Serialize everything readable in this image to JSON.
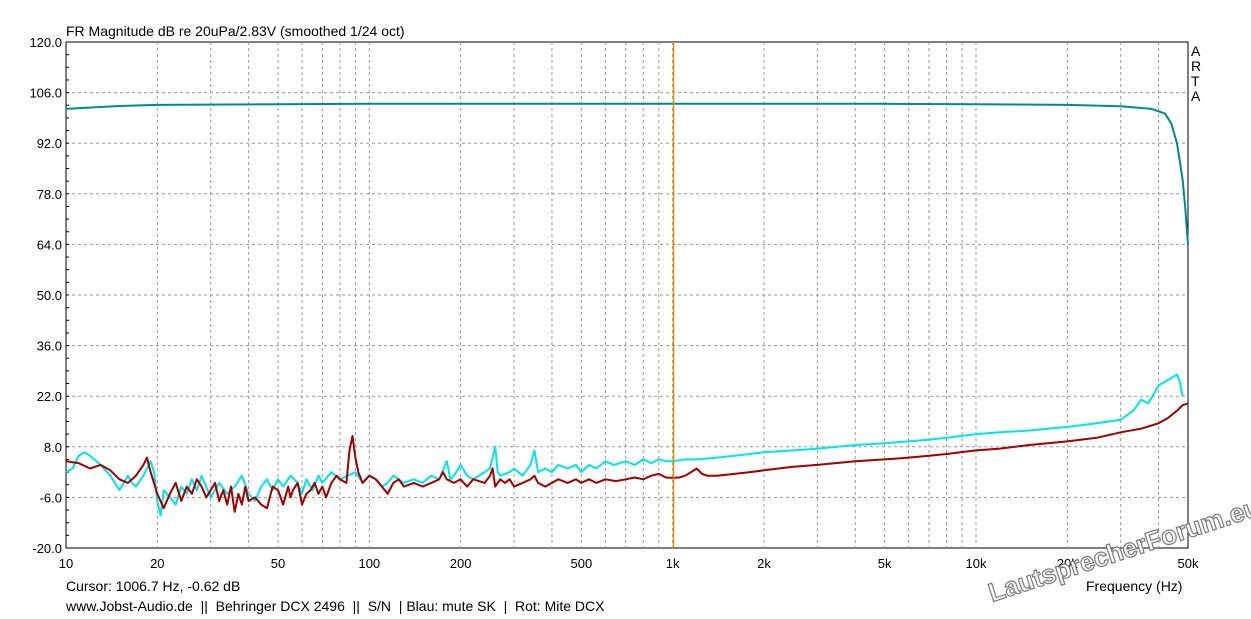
{
  "chart_data": {
    "type": "line",
    "title": "FR Magnitude dB re 20uPa/2.83V (smoothed 1/24 oct)",
    "xlabel": "Frequency (Hz)",
    "ylabel": "",
    "x_scale": "log",
    "xlim": [
      10,
      50000
    ],
    "ylim": [
      -20,
      120
    ],
    "grid": true,
    "y_ticks": [
      "120.0",
      "106.0",
      "92.0",
      "78.0",
      "64.0",
      "50.0",
      "36.0",
      "22.0",
      "8.0",
      "-6.0",
      "-20.0"
    ],
    "x_ticks": [
      {
        "v": 10,
        "label": "10"
      },
      {
        "v": 20,
        "label": "20"
      },
      {
        "v": 50,
        "label": "50"
      },
      {
        "v": 100,
        "label": "100"
      },
      {
        "v": 200,
        "label": "200"
      },
      {
        "v": 500,
        "label": "500"
      },
      {
        "v": 1000,
        "label": "1k"
      },
      {
        "v": 2000,
        "label": "2k"
      },
      {
        "v": 5000,
        "label": "5k"
      },
      {
        "v": 10000,
        "label": "10k"
      },
      {
        "v": 20000,
        "label": "20k"
      },
      {
        "v": 50000,
        "label": "50k"
      }
    ],
    "cursor": {
      "freq": 1006.7,
      "color": "#e08a00"
    },
    "series": [
      {
        "color": "#008b8b",
        "points": [
          [
            10,
            101.5
          ],
          [
            15,
            102.3
          ],
          [
            20,
            102.6
          ],
          [
            50,
            102.8
          ],
          [
            100,
            102.9
          ],
          [
            500,
            102.9
          ],
          [
            1000,
            102.9
          ],
          [
            5000,
            102.9
          ],
          [
            10000,
            102.8
          ],
          [
            20000,
            102.6
          ],
          [
            30000,
            102.2
          ],
          [
            38000,
            101.5
          ],
          [
            42000,
            100.2
          ],
          [
            44000,
            97.5
          ],
          [
            46000,
            92
          ],
          [
            48000,
            82
          ],
          [
            49000,
            74
          ],
          [
            50000,
            64
          ]
        ]
      },
      {
        "color": "#00e5e5",
        "points": [
          [
            10,
            1
          ],
          [
            10.5,
            2
          ],
          [
            11,
            5.5
          ],
          [
            11.5,
            6.5
          ],
          [
            12,
            5.5
          ],
          [
            13,
            3
          ],
          [
            14,
            0
          ],
          [
            14.5,
            -2
          ],
          [
            15,
            -4
          ],
          [
            15.5,
            -2
          ],
          [
            16,
            0
          ],
          [
            16.5,
            -2
          ],
          [
            17,
            -3
          ],
          [
            18,
            0
          ],
          [
            19,
            4
          ],
          [
            19.5,
            1
          ],
          [
            20,
            -7
          ],
          [
            20.5,
            -11
          ],
          [
            21,
            -4
          ],
          [
            22,
            -6
          ],
          [
            23,
            -8
          ],
          [
            24,
            -3
          ],
          [
            25,
            -5
          ],
          [
            26,
            -1
          ],
          [
            27,
            -4
          ],
          [
            28,
            0
          ],
          [
            30,
            -6
          ],
          [
            32,
            -2
          ],
          [
            34,
            -5
          ],
          [
            36,
            -3
          ],
          [
            38,
            0
          ],
          [
            40,
            -5
          ],
          [
            42,
            -7
          ],
          [
            44,
            -3
          ],
          [
            46,
            -1
          ],
          [
            48,
            -4
          ],
          [
            50,
            -1
          ],
          [
            52,
            -3
          ],
          [
            55,
            0
          ],
          [
            58,
            -2
          ],
          [
            60,
            -5
          ],
          [
            62,
            -1
          ],
          [
            65,
            -4
          ],
          [
            68,
            0
          ],
          [
            70,
            -2
          ],
          [
            75,
            1
          ],
          [
            80,
            -1
          ],
          [
            85,
            0
          ],
          [
            90,
            1
          ],
          [
            95,
            -2
          ],
          [
            100,
            0
          ],
          [
            105,
            -1
          ],
          [
            110,
            -3
          ],
          [
            115,
            -2
          ],
          [
            120,
            0
          ],
          [
            125,
            -1
          ],
          [
            130,
            -2
          ],
          [
            140,
            -1
          ],
          [
            150,
            -2
          ],
          [
            160,
            0
          ],
          [
            170,
            -1
          ],
          [
            180,
            4
          ],
          [
            185,
            -1
          ],
          [
            190,
            0
          ],
          [
            200,
            3
          ],
          [
            210,
            0
          ],
          [
            220,
            -1
          ],
          [
            240,
            1
          ],
          [
            250,
            2
          ],
          [
            260,
            8
          ],
          [
            265,
            1
          ],
          [
            270,
            0
          ],
          [
            290,
            1
          ],
          [
            300,
            2
          ],
          [
            320,
            0
          ],
          [
            340,
            3
          ],
          [
            350,
            7
          ],
          [
            360,
            1
          ],
          [
            380,
            2
          ],
          [
            400,
            1
          ],
          [
            420,
            3
          ],
          [
            450,
            2
          ],
          [
            480,
            3
          ],
          [
            500,
            1
          ],
          [
            530,
            3
          ],
          [
            560,
            2
          ],
          [
            600,
            4
          ],
          [
            640,
            3
          ],
          [
            700,
            4
          ],
          [
            750,
            3
          ],
          [
            800,
            4.5
          ],
          [
            850,
            3.5
          ],
          [
            900,
            4.5
          ],
          [
            950,
            4
          ],
          [
            1000,
            4
          ],
          [
            1100,
            4.5
          ],
          [
            1200,
            4.5
          ],
          [
            1400,
            5
          ],
          [
            1600,
            5.5
          ],
          [
            1800,
            6
          ],
          [
            2000,
            6.5
          ],
          [
            2500,
            7
          ],
          [
            3000,
            7.5
          ],
          [
            4000,
            8.5
          ],
          [
            5000,
            9
          ],
          [
            6000,
            9.5
          ],
          [
            7000,
            10
          ],
          [
            8000,
            10.5
          ],
          [
            10000,
            11.5
          ],
          [
            12000,
            12
          ],
          [
            15000,
            12.5
          ],
          [
            20000,
            13.5
          ],
          [
            25000,
            14.5
          ],
          [
            30000,
            15.5
          ],
          [
            33000,
            18
          ],
          [
            35000,
            21
          ],
          [
            37000,
            20
          ],
          [
            40000,
            25
          ],
          [
            42000,
            26
          ],
          [
            44000,
            27
          ],
          [
            46000,
            28
          ],
          [
            47000,
            26
          ],
          [
            48000,
            22
          ]
        ]
      },
      {
        "color": "#a00000",
        "points": [
          [
            10,
            4
          ],
          [
            11,
            3.5
          ],
          [
            12,
            2
          ],
          [
            13,
            3
          ],
          [
            14,
            1.5
          ],
          [
            15,
            -1
          ],
          [
            16,
            -2
          ],
          [
            17,
            0
          ],
          [
            18,
            3
          ],
          [
            18.5,
            5
          ],
          [
            19,
            1
          ],
          [
            20,
            -5
          ],
          [
            21,
            -9
          ],
          [
            22,
            -5
          ],
          [
            23,
            -2
          ],
          [
            24,
            -7
          ],
          [
            25,
            -3
          ],
          [
            26,
            -5
          ],
          [
            27,
            -1
          ],
          [
            28,
            -3
          ],
          [
            29,
            -6
          ],
          [
            30,
            -4
          ],
          [
            31,
            -2
          ],
          [
            32,
            -7
          ],
          [
            33,
            -4
          ],
          [
            34,
            -8
          ],
          [
            35,
            -3
          ],
          [
            36,
            -10
          ],
          [
            37,
            -5
          ],
          [
            38,
            -8
          ],
          [
            39,
            -3
          ],
          [
            40,
            -7
          ],
          [
            42,
            -6
          ],
          [
            44,
            -8
          ],
          [
            46,
            -9
          ],
          [
            48,
            -3
          ],
          [
            50,
            -4
          ],
          [
            52,
            -8
          ],
          [
            54,
            -3
          ],
          [
            55,
            -6
          ],
          [
            56,
            -4
          ],
          [
            58,
            -2
          ],
          [
            60,
            -8
          ],
          [
            62,
            -5
          ],
          [
            64,
            -4
          ],
          [
            66,
            -2
          ],
          [
            68,
            -5
          ],
          [
            70,
            -3
          ],
          [
            72,
            -6
          ],
          [
            75,
            -2
          ],
          [
            78,
            0
          ],
          [
            80,
            -1
          ],
          [
            84,
            -2
          ],
          [
            86,
            7
          ],
          [
            88,
            11
          ],
          [
            90,
            5
          ],
          [
            92,
            1
          ],
          [
            95,
            -2
          ],
          [
            100,
            0
          ],
          [
            105,
            -1
          ],
          [
            110,
            -3
          ],
          [
            115,
            -5
          ],
          [
            120,
            -2
          ],
          [
            125,
            -1
          ],
          [
            130,
            -3
          ],
          [
            140,
            -2
          ],
          [
            150,
            -3
          ],
          [
            160,
            -2
          ],
          [
            170,
            -1
          ],
          [
            175,
            1
          ],
          [
            180,
            -1
          ],
          [
            190,
            -2
          ],
          [
            200,
            -1
          ],
          [
            210,
            -3
          ],
          [
            220,
            -1
          ],
          [
            240,
            -2
          ],
          [
            250,
            0
          ],
          [
            255,
            2
          ],
          [
            260,
            -3
          ],
          [
            270,
            -1
          ],
          [
            280,
            -2
          ],
          [
            290,
            -1
          ],
          [
            300,
            -3
          ],
          [
            320,
            -2
          ],
          [
            340,
            -1
          ],
          [
            350,
            0
          ],
          [
            360,
            -2
          ],
          [
            380,
            -3
          ],
          [
            400,
            -2
          ],
          [
            420,
            -1
          ],
          [
            450,
            -2
          ],
          [
            480,
            -1
          ],
          [
            500,
            -2
          ],
          [
            530,
            -1
          ],
          [
            560,
            -2
          ],
          [
            600,
            -1
          ],
          [
            650,
            -1.5
          ],
          [
            700,
            -1
          ],
          [
            750,
            -0.5
          ],
          [
            800,
            -1
          ],
          [
            850,
            0
          ],
          [
            900,
            0.5
          ],
          [
            950,
            -0.5
          ],
          [
            1000,
            -0.6
          ],
          [
            1050,
            -0.5
          ],
          [
            1100,
            0
          ],
          [
            1150,
            1
          ],
          [
            1200,
            2
          ],
          [
            1250,
            0.5
          ],
          [
            1300,
            0
          ],
          [
            1400,
            0
          ],
          [
            1600,
            0.5
          ],
          [
            1800,
            1
          ],
          [
            2000,
            1.5
          ],
          [
            2500,
            2.5
          ],
          [
            3000,
            3
          ],
          [
            4000,
            4
          ],
          [
            5000,
            4.5
          ],
          [
            6000,
            5
          ],
          [
            7000,
            5.5
          ],
          [
            8000,
            6
          ],
          [
            10000,
            7
          ],
          [
            12000,
            7.5
          ],
          [
            15000,
            8.5
          ],
          [
            20000,
            9.5
          ],
          [
            25000,
            10.5
          ],
          [
            30000,
            12
          ],
          [
            35000,
            13
          ],
          [
            40000,
            14.5
          ],
          [
            43000,
            16
          ],
          [
            46000,
            18
          ],
          [
            48000,
            19.5
          ],
          [
            50000,
            20
          ]
        ]
      }
    ],
    "side_label": [
      "A",
      "R",
      "T",
      "A"
    ]
  },
  "footer": {
    "cursor_readout": "Cursor: 1006.7 Hz, -0.62 dB",
    "info": "www.Jobst-Audio.de  ||  Behringer DCX 2496  ||  S/N  | Blau: mute SK  |  Rot: Mite DCX"
  },
  "watermark": "LautsprecherForum.eu"
}
